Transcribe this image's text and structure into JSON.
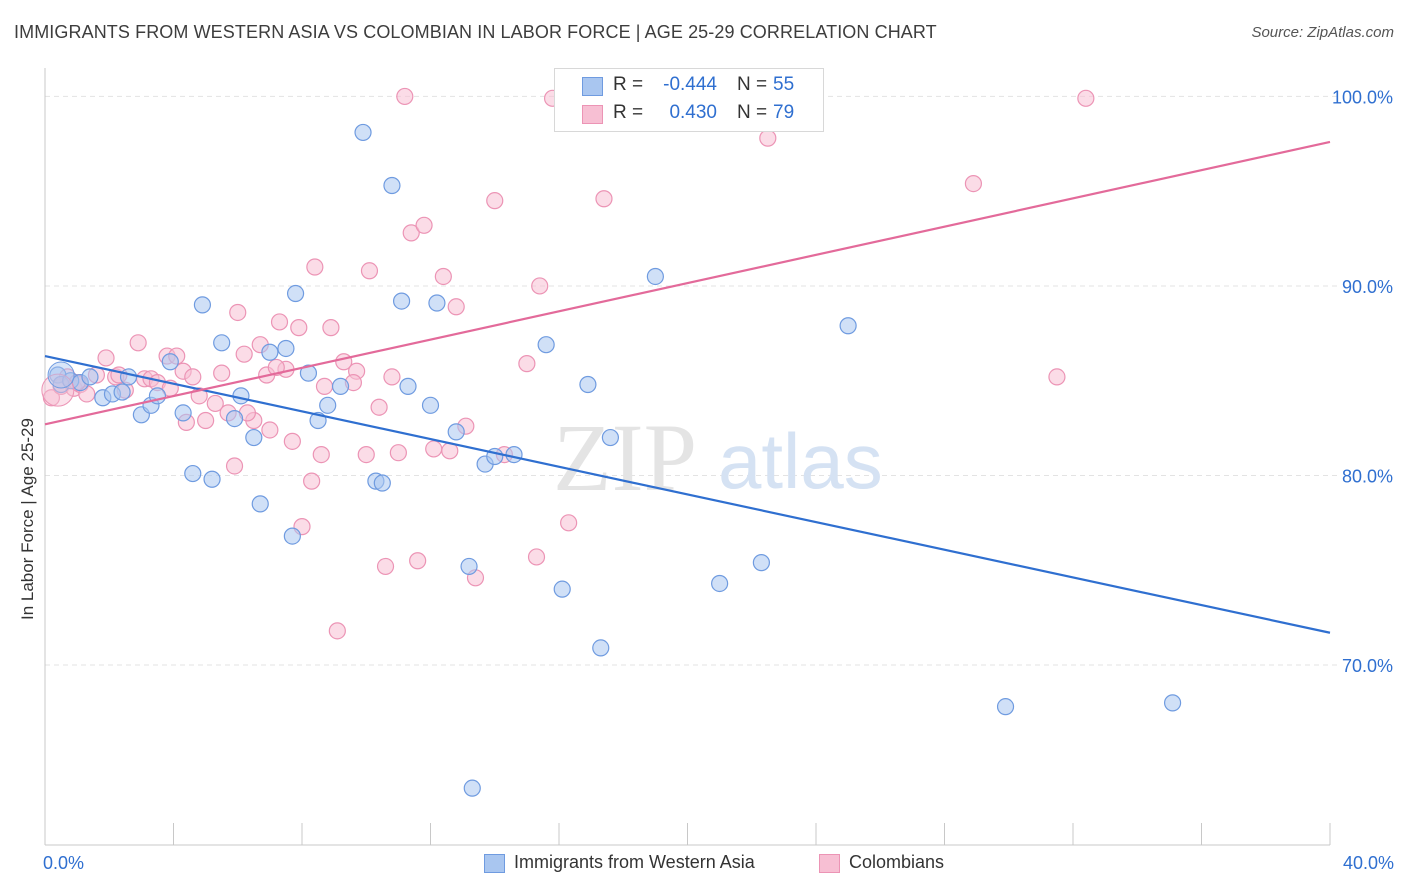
{
  "title": "IMMIGRANTS FROM WESTERN ASIA VS COLOMBIAN IN LABOR FORCE | AGE 25-29 CORRELATION CHART",
  "source": "Source: ZipAtlas.com",
  "watermark": {
    "zip": "ZIP",
    "atlas": "atlas"
  },
  "colors": {
    "blue": "#2f6fd0",
    "blue_fill": "#a9c6f0",
    "blue_stroke": "#6f9be0",
    "pink": "#e36a9a",
    "pink_fill": "#f7bfd3",
    "pink_stroke": "#ec94b5",
    "grid": "#e3e3e3",
    "axis_text": "#2f6fd0"
  },
  "stats": [
    {
      "r_label": "R =",
      "r_value": "-0.444",
      "n_label": "N =",
      "n_value": "55"
    },
    {
      "r_label": "R =",
      "r_value": "0.430",
      "n_label": "N =",
      "n_value": "79"
    }
  ],
  "x_axis": {
    "min_label": "0.0%",
    "max_label": "40.0%"
  },
  "chart_data": {
    "type": "scatter",
    "ylabel": "In Labor Force | Age 25-29",
    "xlim": [
      0,
      40
    ],
    "ylim": [
      60.5,
      101.5
    ],
    "yticks": [
      70,
      80,
      90,
      100
    ],
    "ytick_labels": [
      "70.0%",
      "80.0%",
      "90.0%",
      "100.0%"
    ],
    "grid": true,
    "legend_position": "bottom-center",
    "series": [
      {
        "name": "Immigrants from Western Asia",
        "color": "#2f6fd0",
        "trend": [
          [
            0,
            86.3
          ],
          [
            40,
            71.7
          ]
        ],
        "points": [
          [
            0.4,
            85.3
          ],
          [
            0.5,
            84.8
          ],
          [
            0.8,
            85.0
          ],
          [
            1.1,
            84.9
          ],
          [
            1.4,
            85.2
          ],
          [
            1.8,
            84.1
          ],
          [
            2.1,
            84.3
          ],
          [
            2.4,
            84.4
          ],
          [
            2.6,
            85.2
          ],
          [
            3.0,
            83.2
          ],
          [
            3.3,
            83.7
          ],
          [
            3.5,
            84.2
          ],
          [
            3.9,
            86.0
          ],
          [
            4.3,
            83.3
          ],
          [
            4.6,
            80.1
          ],
          [
            4.9,
            89.0
          ],
          [
            5.2,
            79.8
          ],
          [
            5.5,
            87.0
          ],
          [
            5.9,
            83.0
          ],
          [
            6.1,
            84.2
          ],
          [
            6.5,
            82.0
          ],
          [
            6.7,
            78.5
          ],
          [
            7.0,
            86.5
          ],
          [
            7.5,
            86.7
          ],
          [
            7.7,
            76.8
          ],
          [
            7.8,
            89.6
          ],
          [
            8.2,
            85.4
          ],
          [
            8.5,
            82.9
          ],
          [
            8.8,
            83.7
          ],
          [
            9.2,
            84.7
          ],
          [
            9.9,
            98.1
          ],
          [
            10.3,
            79.7
          ],
          [
            10.5,
            79.6
          ],
          [
            10.8,
            95.3
          ],
          [
            11.1,
            89.2
          ],
          [
            11.3,
            84.7
          ],
          [
            12.0,
            83.7
          ],
          [
            12.2,
            89.1
          ],
          [
            12.8,
            82.3
          ],
          [
            13.2,
            75.2
          ],
          [
            13.3,
            63.5
          ],
          [
            13.7,
            80.6
          ],
          [
            14.0,
            81.0
          ],
          [
            14.6,
            81.1
          ],
          [
            15.6,
            86.9
          ],
          [
            16.1,
            74.0
          ],
          [
            16.9,
            84.8
          ],
          [
            17.3,
            70.9
          ],
          [
            17.6,
            82.0
          ],
          [
            19.0,
            90.5
          ],
          [
            21.0,
            74.3
          ],
          [
            22.3,
            75.4
          ],
          [
            25.0,
            87.9
          ],
          [
            29.9,
            67.8
          ],
          [
            35.1,
            68.0
          ]
        ]
      },
      {
        "name": "Colombians",
        "color": "#e36a9a",
        "trend": [
          [
            0,
            82.7
          ],
          [
            40,
            97.6
          ]
        ],
        "points": [
          [
            0.2,
            84.1
          ],
          [
            0.5,
            84.7
          ],
          [
            0.7,
            85.2
          ],
          [
            0.9,
            84.6
          ],
          [
            1.1,
            84.8
          ],
          [
            1.3,
            84.3
          ],
          [
            1.6,
            85.3
          ],
          [
            1.9,
            86.2
          ],
          [
            2.2,
            85.2
          ],
          [
            2.5,
            84.5
          ],
          [
            2.9,
            87.0
          ],
          [
            3.1,
            85.1
          ],
          [
            3.3,
            85.1
          ],
          [
            3.5,
            84.9
          ],
          [
            3.8,
            86.3
          ],
          [
            4.1,
            86.3
          ],
          [
            4.3,
            85.5
          ],
          [
            4.4,
            82.8
          ],
          [
            4.8,
            84.2
          ],
          [
            5.0,
            82.9
          ],
          [
            5.3,
            83.8
          ],
          [
            5.5,
            85.4
          ],
          [
            5.7,
            83.3
          ],
          [
            5.9,
            80.5
          ],
          [
            6.0,
            88.6
          ],
          [
            6.2,
            86.4
          ],
          [
            6.5,
            82.9
          ],
          [
            6.7,
            86.9
          ],
          [
            6.9,
            85.3
          ],
          [
            7.0,
            82.4
          ],
          [
            7.3,
            88.1
          ],
          [
            7.5,
            85.6
          ],
          [
            7.7,
            81.8
          ],
          [
            7.9,
            87.8
          ],
          [
            8.0,
            77.3
          ],
          [
            8.3,
            79.7
          ],
          [
            8.4,
            91.0
          ],
          [
            8.6,
            81.1
          ],
          [
            8.9,
            87.8
          ],
          [
            9.1,
            71.8
          ],
          [
            9.3,
            86.0
          ],
          [
            9.7,
            85.5
          ],
          [
            10.0,
            81.1
          ],
          [
            10.1,
            90.8
          ],
          [
            10.4,
            83.6
          ],
          [
            10.6,
            75.2
          ],
          [
            10.8,
            85.2
          ],
          [
            11.0,
            81.2
          ],
          [
            11.2,
            100.0
          ],
          [
            11.4,
            92.8
          ],
          [
            11.6,
            75.5
          ],
          [
            11.8,
            93.2
          ],
          [
            12.1,
            81.4
          ],
          [
            12.4,
            90.5
          ],
          [
            12.6,
            81.3
          ],
          [
            12.8,
            88.9
          ],
          [
            13.1,
            82.6
          ],
          [
            13.4,
            74.6
          ],
          [
            14.0,
            94.5
          ],
          [
            14.3,
            81.1
          ],
          [
            15.0,
            85.9
          ],
          [
            15.3,
            75.7
          ],
          [
            15.4,
            90.0
          ],
          [
            15.8,
            99.9
          ],
          [
            16.3,
            77.5
          ],
          [
            17.4,
            94.6
          ],
          [
            21.0,
            99.9
          ],
          [
            22.5,
            97.8
          ],
          [
            28.9,
            95.4
          ],
          [
            31.5,
            85.2
          ],
          [
            32.4,
            99.9
          ],
          [
            1.0,
            84.9
          ],
          [
            2.3,
            85.3
          ],
          [
            4.6,
            85.2
          ],
          [
            6.3,
            83.3
          ],
          [
            7.2,
            85.7
          ],
          [
            8.7,
            84.7
          ],
          [
            9.6,
            84.9
          ],
          [
            3.9,
            84.6
          ]
        ]
      }
    ]
  }
}
